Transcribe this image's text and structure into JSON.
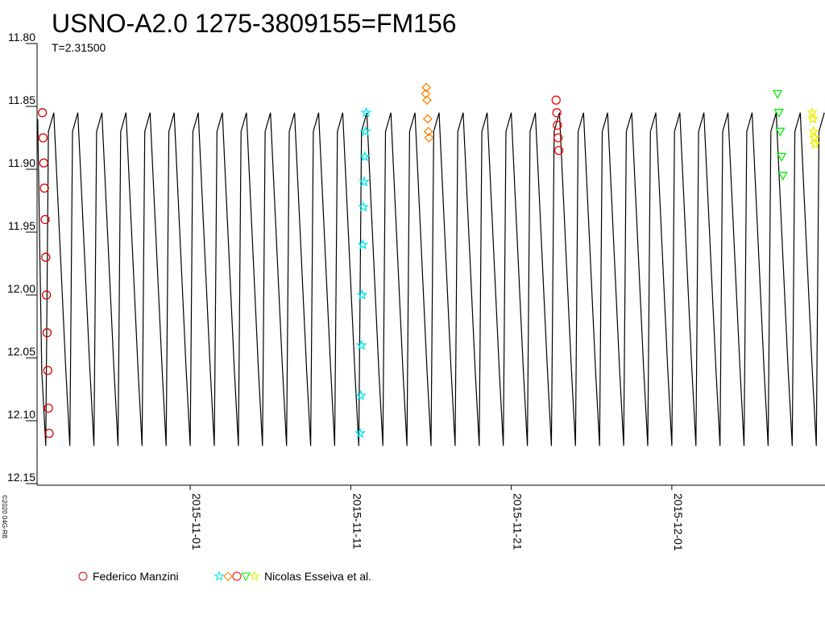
{
  "chart_data": {
    "type": "line",
    "title": "USNO-A2.0 1275-3809155=FM156",
    "subtitle": "T=2.31500",
    "credit": "©2020 04G-R8",
    "xlim": [
      "2015-10-22T11:00",
      "2015-12-10T13:00"
    ],
    "xticks": [
      "2015-11-01",
      "2015-11-11",
      "2015-11-21",
      "2015-12-01"
    ],
    "ylim": [
      11.8,
      12.15
    ],
    "y_inverted": true,
    "yticks": [
      {
        "value": 11.8,
        "label": "11.80"
      },
      {
        "value": 11.85,
        "label": "11.85"
      },
      {
        "value": 11.9,
        "label": "11.90"
      },
      {
        "value": 11.95,
        "label": "11.95"
      },
      {
        "value": 12.0,
        "label": "12.00"
      },
      {
        "value": 12.05,
        "label": "12.05"
      },
      {
        "value": 12.1,
        "label": "12.10"
      },
      {
        "value": 12.15,
        "label": "12.15"
      }
    ],
    "model": {
      "color": "#000000",
      "x": [
        "2015-10-22T12:00",
        "2015-10-22T18:00",
        "2015-10-23T00:00",
        "2015-10-23T04:00",
        "2015-10-23T12:00",
        "2015-10-24T06:00",
        "2015-10-24T12:00",
        "2015-10-24T16:00",
        "2015-10-25T00:00",
        "2015-10-25T18:00",
        "2015-10-26T00:00",
        "2015-10-26T04:00",
        "2015-10-26T12:00",
        "2015-10-27T06:00",
        "2015-10-27T12:00",
        "2015-10-27T16:00",
        "2015-10-28T00:00",
        "2015-10-28T18:00",
        "2015-10-29T00:00",
        "2015-10-29T04:00",
        "2015-10-29T12:00",
        "2015-10-30T06:00",
        "2015-10-30T12:00",
        "2015-10-30T16:00",
        "2015-10-31T00:00",
        "2015-10-31T18:00",
        "2015-11-01T00:00",
        "2015-11-01T04:00",
        "2015-11-01T12:00",
        "2015-11-02T06:00",
        "2015-11-02T12:00",
        "2015-11-02T16:00",
        "2015-11-03T00:00",
        "2015-11-03T18:00",
        "2015-11-04T00:00",
        "2015-11-04T04:00",
        "2015-11-04T12:00",
        "2015-11-05T06:00",
        "2015-11-05T12:00",
        "2015-11-05T16:00",
        "2015-11-06T00:00",
        "2015-11-06T18:00",
        "2015-11-07T00:00",
        "2015-11-07T04:00",
        "2015-11-07T12:00",
        "2015-11-08T06:00",
        "2015-11-08T12:00",
        "2015-11-08T16:00",
        "2015-11-09T00:00",
        "2015-11-09T18:00",
        "2015-11-10T00:00",
        "2015-11-10T04:00",
        "2015-11-10T12:00",
        "2015-11-11T06:00",
        "2015-11-11T12:00",
        "2015-11-11T16:00",
        "2015-11-12T00:00",
        "2015-11-12T18:00",
        "2015-11-13T00:00",
        "2015-11-13T04:00",
        "2015-11-13T12:00",
        "2015-11-14T06:00",
        "2015-11-14T12:00",
        "2015-11-14T16:00",
        "2015-11-15T00:00",
        "2015-11-15T18:00",
        "2015-11-16T00:00",
        "2015-11-16T04:00",
        "2015-11-16T12:00",
        "2015-11-17T06:00",
        "2015-11-17T12:00",
        "2015-11-17T16:00",
        "2015-11-18T00:00",
        "2015-11-18T18:00",
        "2015-11-19T00:00",
        "2015-11-19T04:00",
        "2015-11-19T12:00",
        "2015-11-20T06:00",
        "2015-11-20T12:00",
        "2015-11-20T16:00",
        "2015-11-21T00:00",
        "2015-11-21T18:00",
        "2015-11-22T00:00",
        "2015-11-22T04:00",
        "2015-11-22T12:00",
        "2015-11-23T06:00",
        "2015-11-23T12:00",
        "2015-11-23T16:00",
        "2015-11-24T00:00",
        "2015-11-24T18:00",
        "2015-11-25T00:00",
        "2015-11-25T04:00",
        "2015-11-25T12:00",
        "2015-11-26T06:00",
        "2015-11-26T12:00",
        "2015-11-26T16:00",
        "2015-11-27T00:00",
        "2015-11-27T18:00",
        "2015-11-28T00:00",
        "2015-11-28T04:00",
        "2015-11-28T12:00",
        "2015-11-29T06:00",
        "2015-11-29T12:00",
        "2015-11-29T16:00",
        "2015-11-30T00:00",
        "2015-11-30T18:00",
        "2015-12-01T00:00",
        "2015-12-01T04:00",
        "2015-12-01T12:00",
        "2015-12-02T06:00",
        "2015-12-02T12:00",
        "2015-12-02T16:00",
        "2015-12-03T00:00",
        "2015-12-03T18:00",
        "2015-12-04T00:00",
        "2015-12-04T04:00",
        "2015-12-04T12:00",
        "2015-12-05T06:00",
        "2015-12-05T12:00",
        "2015-12-05T16:00",
        "2015-12-06T00:00",
        "2015-12-06T18:00",
        "2015-12-07T00:00",
        "2015-12-07T04:00",
        "2015-12-07T12:00",
        "2015-12-08T06:00",
        "2015-12-08T12:00",
        "2015-12-08T16:00",
        "2015-12-09T00:00",
        "2015-12-09T18:00",
        "2015-12-10T00:00",
        "2015-12-10T04:00",
        "2015-12-10T12:00"
      ],
      "values": [
        11.86,
        12.06,
        12.12,
        11.87,
        11.855,
        12.06,
        12.12,
        11.87,
        11.855,
        12.06,
        12.12,
        11.87,
        11.855,
        12.06,
        12.12,
        11.87,
        11.855,
        12.06,
        12.12,
        11.87,
        11.855,
        12.06,
        12.12,
        11.87,
        11.855,
        12.06,
        12.12,
        11.87,
        11.855,
        12.06,
        12.12,
        11.87,
        11.855,
        12.06,
        12.12,
        11.87,
        11.855,
        12.06,
        12.12,
        11.87,
        11.855,
        12.06,
        12.12,
        11.87,
        11.855,
        12.06,
        12.12,
        11.87,
        11.855,
        12.06,
        12.12,
        11.87,
        11.855,
        12.06,
        12.12,
        11.87,
        11.855,
        12.06,
        12.12,
        11.87,
        11.855,
        12.06,
        12.12,
        11.87,
        11.855,
        12.06,
        12.12,
        11.87,
        11.855,
        12.06,
        12.12,
        11.87,
        11.855,
        12.06,
        12.12,
        11.87,
        11.855,
        12.06,
        12.12,
        11.87,
        11.855,
        12.06,
        12.12,
        11.87,
        11.855,
        12.06,
        12.12,
        11.87,
        11.855,
        12.06,
        12.12,
        11.87,
        11.855,
        12.06,
        12.12,
        11.87,
        11.855,
        12.06,
        12.12,
        11.87,
        11.855,
        12.06,
        12.12,
        11.87,
        11.855,
        12.06,
        12.12,
        11.87,
        11.855,
        12.06,
        12.12,
        11.87,
        11.855,
        12.06,
        12.12,
        11.87,
        11.855,
        12.06,
        12.12,
        11.87,
        11.855,
        12.06,
        12.12,
        11.87,
        11.855,
        12.06,
        12.12,
        11.87,
        11.855,
        12.06,
        12.12,
        11.87,
        11.855
      ]
    },
    "series": [
      {
        "name": "Federico Manzini",
        "groups": [
          {
            "color": "#dd0000",
            "marker": "circle",
            "x": [
              "2015-10-22T19:00",
              "2015-10-22T20:00",
              "2015-10-22T21:00",
              "2015-10-22T22:00",
              "2015-10-22T23:00",
              "2015-10-23T00:00",
              "2015-10-23T01:00",
              "2015-10-23T02:00",
              "2015-10-23T03:00",
              "2015-10-23T04:00",
              "2015-10-23T05:00"
            ],
            "values": [
              11.855,
              11.875,
              11.895,
              11.915,
              11.94,
              11.97,
              12.0,
              12.03,
              12.06,
              12.09,
              12.11
            ]
          }
        ]
      },
      {
        "name": "Nicolas Esseiva et al.",
        "groups": [
          {
            "color": "#00e5ee",
            "marker": "star",
            "x": [
              "2015-11-11T14:00",
              "2015-11-11T15:00",
              "2015-11-11T16:00",
              "2015-11-11T17:00",
              "2015-11-11T18:00",
              "2015-11-11T19:00",
              "2015-11-11T20:00",
              "2015-11-11T21:00",
              "2015-11-11T22:00",
              "2015-11-11T23:00"
            ],
            "values": [
              12.11,
              12.08,
              12.04,
              12.0,
              11.96,
              11.93,
              11.91,
              11.89,
              11.87,
              11.855
            ]
          },
          {
            "color": "#ff8000",
            "marker": "diamond",
            "x": [
              "2015-11-15T16:00",
              "2015-11-15T17:00",
              "2015-11-15T18:00",
              "2015-11-15T19:00",
              "2015-11-15T20:00",
              "2015-11-15T21:00"
            ],
            "values": [
              11.84,
              11.835,
              11.845,
              11.86,
              11.87,
              11.875
            ]
          },
          {
            "color": "#ff0000",
            "marker": "circle",
            "x": [
              "2015-11-23T19:00",
              "2015-11-23T20:00",
              "2015-11-23T21:00",
              "2015-11-23T22:00",
              "2015-11-23T23:00"
            ],
            "values": [
              11.845,
              11.855,
              11.865,
              11.875,
              11.885
            ]
          },
          {
            "color": "#00ee00",
            "marker": "down-triangle",
            "x": [
              "2015-12-07T14:00",
              "2015-12-07T16:00",
              "2015-12-07T18:00",
              "2015-12-07T20:00",
              "2015-12-07T22:00"
            ],
            "values": [
              11.84,
              11.855,
              11.87,
              11.89,
              11.905
            ]
          },
          {
            "color": "#eeee00",
            "marker": "star",
            "x": [
              "2015-12-09T18:00",
              "2015-12-09T19:00",
              "2015-12-09T20:00",
              "2015-12-09T21:00",
              "2015-12-09T22:00"
            ],
            "values": [
              11.855,
              11.86,
              11.87,
              11.875,
              11.88
            ]
          }
        ]
      }
    ]
  }
}
